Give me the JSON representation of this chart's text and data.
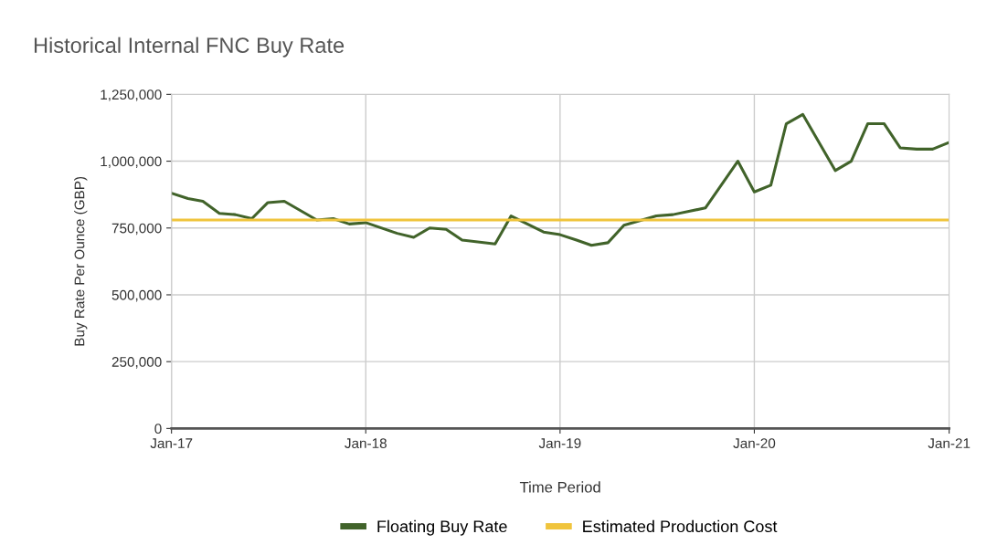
{
  "chart_data": {
    "type": "line",
    "title": "Historical Internal FNC Buy Rate",
    "xlabel": "Time Period",
    "ylabel": "Buy Rate Per Ounce (GBP)",
    "xlim": [
      "2017-01",
      "2021-01"
    ],
    "xticks": [
      {
        "value": "2017-01",
        "label": "Jan-17"
      },
      {
        "value": "2018-01",
        "label": "Jan-18"
      },
      {
        "value": "2019-01",
        "label": "Jan-19"
      },
      {
        "value": "2020-01",
        "label": "Jan-20"
      },
      {
        "value": "2021-01",
        "label": "Jan-21"
      }
    ],
    "ylim": [
      0,
      1250000
    ],
    "yticks": [
      {
        "value": 0,
        "label": "0"
      },
      {
        "value": 250000,
        "label": "250,000"
      },
      {
        "value": 500000,
        "label": "500,000"
      },
      {
        "value": 750000,
        "label": "750,000"
      },
      {
        "value": 1000000,
        "label": "1,000,000"
      },
      {
        "value": 1250000,
        "label": "1,250,000"
      }
    ],
    "grid": true,
    "legend": "bottom",
    "series": [
      {
        "name": "Floating Buy Rate",
        "color": "#41632a",
        "x": [
          "2017-01",
          "2017-02",
          "2017-03",
          "2017-04",
          "2017-05",
          "2017-06",
          "2017-07",
          "2017-08",
          "2017-10",
          "2017-11",
          "2017-12",
          "2018-01",
          "2018-03",
          "2018-04",
          "2018-05",
          "2018-06",
          "2018-07",
          "2018-09",
          "2018-10",
          "2018-12",
          "2019-01",
          "2019-02",
          "2019-03",
          "2019-04",
          "2019-05",
          "2019-07",
          "2019-08",
          "2019-10",
          "2019-12",
          "2020-01",
          "2020-02",
          "2020-03",
          "2020-04",
          "2020-06",
          "2020-07",
          "2020-08",
          "2020-09",
          "2020-10",
          "2020-11",
          "2020-12",
          "2021-01"
        ],
        "values": [
          880000,
          860000,
          850000,
          805000,
          800000,
          785000,
          845000,
          850000,
          780000,
          785000,
          765000,
          770000,
          730000,
          715000,
          750000,
          745000,
          705000,
          690000,
          795000,
          735000,
          725000,
          705000,
          685000,
          695000,
          760000,
          795000,
          800000,
          825000,
          1000000,
          885000,
          910000,
          1140000,
          1175000,
          965000,
          1000000,
          1140000,
          1140000,
          1050000,
          1045000,
          1045000,
          1070000
        ]
      },
      {
        "name": "Estimated Production Cost",
        "color": "#f0c43c",
        "x": [
          "2017-01",
          "2021-01"
        ],
        "values": [
          780000,
          780000
        ]
      }
    ]
  }
}
